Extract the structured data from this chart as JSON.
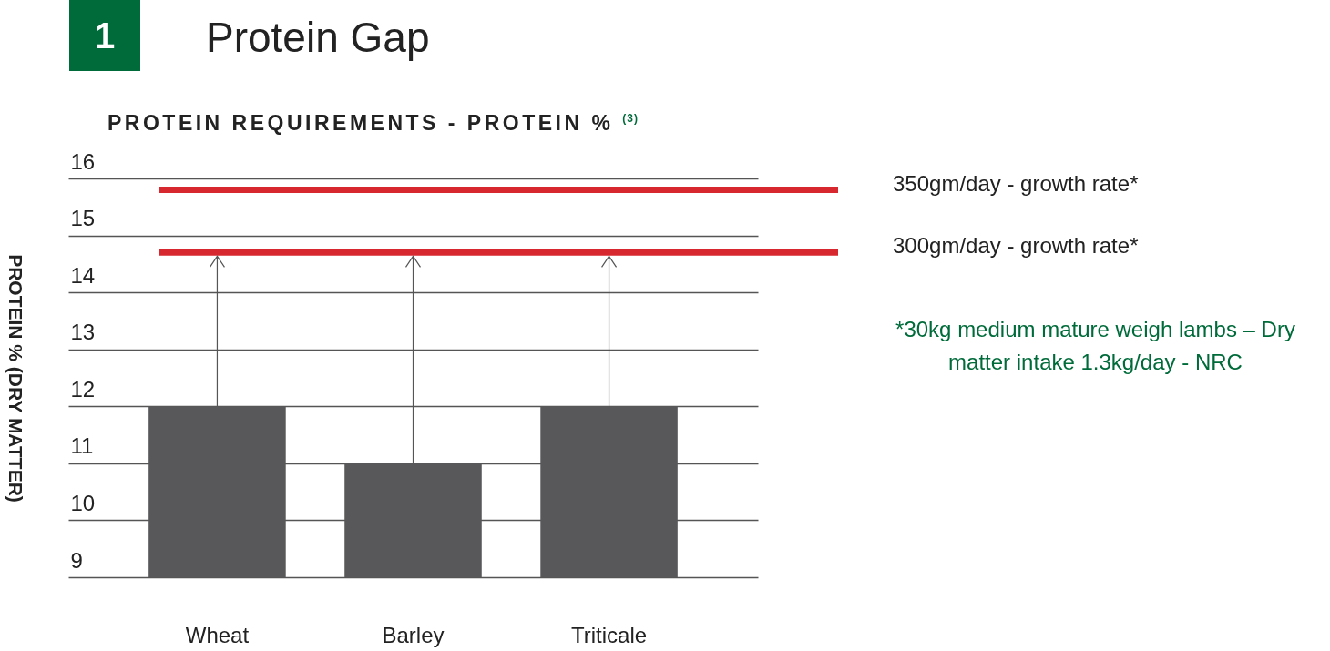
{
  "chart_data": {
    "type": "bar",
    "title": "Protein Gap",
    "subtitle": "PROTEIN REQUIREMENTS - PROTEIN % $^{(3)}$",
    "ylabel": "PROTEIN % (DRY MATTER)",
    "categories": [
      "Wheat",
      "Barley",
      "Triticale"
    ],
    "values": [
      12,
      11,
      12
    ],
    "color": "#58585a",
    "ylim": [
      9,
      16
    ],
    "yticks": [
      9,
      10,
      11,
      12,
      13,
      14,
      15,
      16
    ],
    "grid": "y",
    "ref_lines": [
      {
        "axis": "y",
        "value": 15.8,
        "label": "350gm/day - growth rate*",
        "color": "#d7282f"
      },
      {
        "axis": "y",
        "value": 14.7,
        "label": "300gm/day - growth rate*",
        "color": "#d7282f"
      }
    ],
    "annotations": [
      "1",
      "*30kg medium mature weigh lambs – Dry matter intake 1.3kg/day - NRC"
    ]
  }
}
